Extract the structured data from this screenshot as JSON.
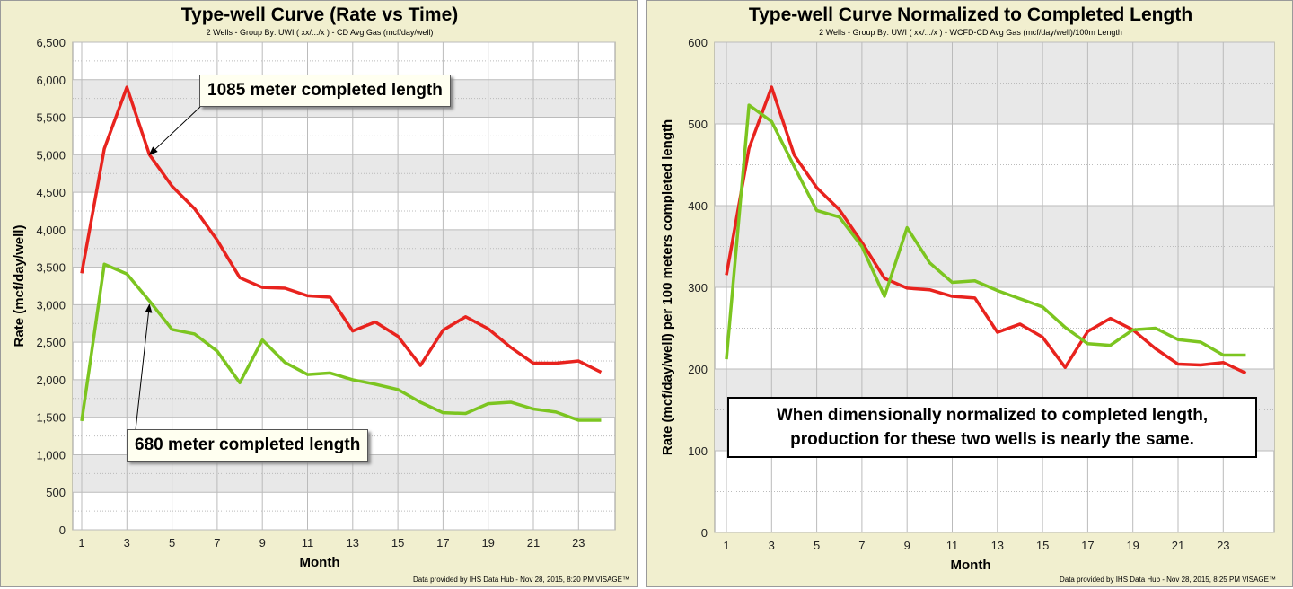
{
  "chart_data": [
    {
      "type": "line",
      "title": "Type-well Curve (Rate vs Time)",
      "subtitle": "2 Wells - Group By: UWI ( xx/.../x ) - CD Avg Gas (mcf/day/well)",
      "xlabel": "Month",
      "ylabel": "Rate (mcf/day/well)",
      "xlim": [
        1,
        24
      ],
      "ylim": [
        0,
        6500
      ],
      "x_ticks": [
        "1",
        "3",
        "5",
        "7",
        "9",
        "11",
        "13",
        "15",
        "17",
        "19",
        "21",
        "23"
      ],
      "y_ticks": [
        "0",
        "500",
        "1,000",
        "1,500",
        "2,000",
        "2,500",
        "3,000",
        "3,500",
        "4,000",
        "4,500",
        "5,000",
        "5,500",
        "6,000",
        "6,500"
      ],
      "grid": true,
      "x": [
        1,
        2,
        3,
        4,
        5,
        6,
        7,
        8,
        9,
        10,
        11,
        12,
        13,
        14,
        15,
        16,
        17,
        18,
        19,
        20,
        21,
        22,
        23,
        24
      ],
      "series": [
        {
          "color": "#e8231e",
          "values": [
            3420,
            5080,
            5900,
            5000,
            4580,
            4280,
            3860,
            3360,
            3230,
            3220,
            3120,
            3100,
            2650,
            2770,
            2580,
            2190,
            2660,
            2840,
            2680,
            2430,
            2220,
            2220,
            2250,
            2100
          ]
        },
        {
          "color": "#7cc520",
          "values": [
            1450,
            3540,
            3410,
            3050,
            2670,
            2610,
            2380,
            1960,
            2530,
            2230,
            2070,
            2090,
            2000,
            1940,
            1870,
            1700,
            1560,
            1550,
            1680,
            1700,
            1610,
            1570,
            1460,
            1460
          ]
        }
      ],
      "annotations": [
        {
          "text": "1085 meter completed length",
          "target": {
            "x": 4,
            "y": 5000
          }
        },
        {
          "text": "680 meter completed length",
          "target": {
            "x": 4,
            "y": 3050
          }
        }
      ],
      "footer": "Data provided by IHS Data Hub - Nov 28, 2015, 8:20 PM  VISAGE™"
    },
    {
      "type": "line",
      "title": "Type-well Curve Normalized to Completed Length",
      "subtitle": "2 Wells - Group By: UWI ( xx/.../x ) - WCFD-CD Avg Gas (mcf/day/well)/100m Length",
      "xlabel": "Month",
      "ylabel": "Rate (mcf/day/well) per 100 meters completed length",
      "xlim": [
        1,
        24
      ],
      "ylim": [
        0,
        600
      ],
      "x_ticks": [
        "1",
        "3",
        "5",
        "7",
        "9",
        "11",
        "13",
        "15",
        "17",
        "19",
        "21",
        "23"
      ],
      "y_ticks": [
        "0",
        "100",
        "200",
        "300",
        "400",
        "500",
        "600"
      ],
      "grid": true,
      "x": [
        1,
        2,
        3,
        4,
        5,
        6,
        7,
        8,
        9,
        10,
        11,
        12,
        13,
        14,
        15,
        16,
        17,
        18,
        19,
        20,
        21,
        22,
        23,
        24
      ],
      "series": [
        {
          "color": "#e8231e",
          "values": [
            315,
            470,
            545,
            462,
            422,
            395,
            355,
            311,
            299,
            297,
            289,
            287,
            245,
            255,
            239,
            202,
            246,
            262,
            248,
            225,
            206,
            205,
            208,
            195
          ]
        },
        {
          "color": "#7cc520",
          "values": [
            212,
            523,
            503,
            448,
            394,
            386,
            350,
            289,
            373,
            330,
            306,
            308,
            296,
            286,
            276,
            251,
            231,
            229,
            248,
            250,
            236,
            233,
            217,
            217
          ]
        }
      ],
      "annotations": [
        {
          "text": "When dimensionally  normalized  to completed length,\nproduction  for these two wells is nearly the same."
        }
      ],
      "footer": "Data provided by IHS Data Hub - Nov 28, 2015, 8:25 PM  VISAGE™"
    }
  ]
}
